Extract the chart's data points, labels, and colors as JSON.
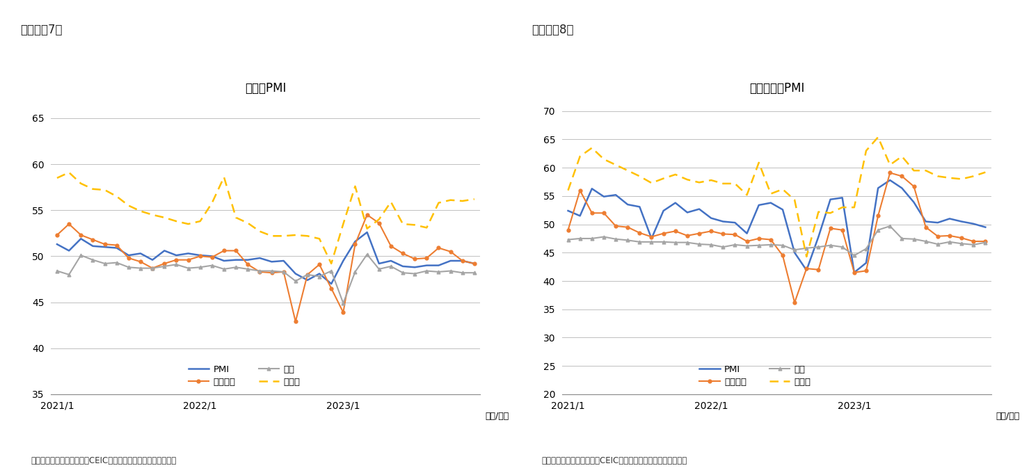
{
  "chart1": {
    "title": "製造業PMI",
    "header": "（図表－7）",
    "ylim": [
      35,
      67
    ],
    "yticks": [
      35,
      40,
      45,
      50,
      55,
      60,
      65
    ],
    "pmi": [
      51.3,
      50.6,
      51.9,
      51.1,
      51.0,
      50.9,
      50.1,
      50.3,
      49.6,
      50.6,
      50.1,
      50.3,
      50.1,
      50.0,
      49.5,
      49.6,
      49.6,
      49.8,
      49.4,
      49.5,
      48.1,
      47.4,
      48.1,
      47.0,
      49.5,
      51.6,
      52.6,
      49.2,
      49.5,
      48.9,
      48.8,
      49.0,
      49.0,
      49.5,
      49.5,
      49.2
    ],
    "new_orders": [
      52.3,
      53.5,
      52.3,
      51.8,
      51.3,
      51.2,
      49.8,
      49.4,
      48.7,
      49.2,
      49.6,
      49.6,
      50.0,
      49.9,
      50.6,
      50.6,
      49.1,
      48.3,
      48.2,
      48.3,
      42.9,
      48.0,
      49.1,
      46.5,
      43.9,
      51.3,
      54.5,
      53.6,
      51.1,
      50.3,
      49.7,
      49.8,
      50.9,
      50.5,
      49.5,
      49.2
    ],
    "employment": [
      48.4,
      48.0,
      50.1,
      49.6,
      49.2,
      49.3,
      48.8,
      48.7,
      48.7,
      48.9,
      49.1,
      48.7,
      48.8,
      49.0,
      48.6,
      48.8,
      48.6,
      48.4,
      48.4,
      48.3,
      47.3,
      48.0,
      47.8,
      48.4,
      44.9,
      48.3,
      50.2,
      48.6,
      48.9,
      48.2,
      48.1,
      48.4,
      48.3,
      48.4,
      48.2,
      48.2
    ],
    "leading": [
      58.5,
      59.1,
      57.9,
      57.3,
      57.2,
      56.5,
      55.5,
      54.9,
      54.5,
      54.2,
      53.8,
      53.5,
      53.8,
      55.8,
      58.6,
      54.2,
      53.6,
      52.7,
      52.2,
      52.2,
      52.3,
      52.2,
      51.9,
      49.2,
      53.5,
      57.6,
      53.0,
      54.0,
      55.9,
      53.5,
      53.4,
      53.1,
      55.8,
      56.1,
      56.0,
      56.2
    ],
    "xlabel": "（年/月）",
    "source": "（資料）中国国家統計局、CEICより、ニッセイ基礎研究所作成",
    "xtick_labels": [
      "2021/1",
      "2022/1",
      "2023/1"
    ],
    "xtick_positions": [
      0,
      12,
      24
    ]
  },
  "chart2": {
    "title": "サービス業PMI",
    "header": "（図表－8）",
    "ylim": [
      20,
      72
    ],
    "yticks": [
      20,
      25,
      30,
      35,
      40,
      45,
      50,
      55,
      60,
      65,
      70
    ],
    "pmi": [
      52.4,
      51.5,
      56.3,
      54.9,
      55.2,
      53.5,
      53.1,
      47.5,
      52.4,
      53.8,
      52.1,
      52.7,
      51.1,
      50.5,
      50.3,
      48.4,
      53.4,
      53.8,
      52.6,
      45.0,
      41.9,
      47.8,
      54.4,
      54.7,
      41.5,
      43.2,
      56.4,
      57.8,
      56.4,
      53.9,
      50.5,
      50.3,
      51.0,
      50.5,
      50.1,
      49.5
    ],
    "new_orders": [
      49.0,
      56.0,
      52.0,
      52.0,
      49.7,
      49.5,
      48.5,
      47.8,
      48.4,
      48.8,
      48.0,
      48.4,
      48.8,
      48.3,
      48.2,
      47.0,
      47.5,
      47.3,
      44.5,
      36.2,
      42.2,
      42.0,
      49.3,
      49.0,
      41.5,
      41.8,
      51.5,
      59.1,
      58.5,
      56.7,
      49.5,
      47.9,
      48.0,
      47.6,
      47.0,
      47.0
    ],
    "employment": [
      47.3,
      47.5,
      47.5,
      47.8,
      47.4,
      47.2,
      46.9,
      46.9,
      46.9,
      46.8,
      46.8,
      46.5,
      46.4,
      46.0,
      46.4,
      46.2,
      46.3,
      46.4,
      46.3,
      45.5,
      45.8,
      46.0,
      46.3,
      46.0,
      44.5,
      45.7,
      49.0,
      49.7,
      47.5,
      47.4,
      47.0,
      46.5,
      46.9,
      46.6,
      46.4,
      46.8
    ],
    "leading": [
      56.0,
      62.0,
      63.5,
      61.5,
      60.5,
      59.5,
      58.5,
      57.3,
      58.1,
      58.8,
      57.9,
      57.4,
      57.8,
      57.2,
      57.2,
      55.2,
      60.9,
      55.4,
      56.2,
      54.3,
      44.3,
      52.2,
      52.0,
      53.0,
      53.0,
      63.0,
      65.4,
      60.5,
      62.0,
      59.5,
      59.5,
      58.5,
      58.2,
      58.0,
      58.5,
      59.2
    ],
    "xlabel": "（年/月）",
    "source": "（資料）中国国家統計局、CEICより、ニッセイ基礎研究所作成",
    "xtick_labels": [
      "2021/1",
      "2022/1",
      "2023/1"
    ],
    "xtick_positions": [
      0,
      12,
      24
    ]
  },
  "colors": {
    "pmi": "#4472C4",
    "new_orders": "#ED7D31",
    "employment": "#A5A5A5",
    "leading": "#FFC000"
  },
  "legend_labels": {
    "pmi": "PMI",
    "new_orders": "新規受注",
    "employment": "雇用",
    "leading": "先行き"
  },
  "background_color": "#FFFFFF",
  "grid_color": "#C0C0C0"
}
